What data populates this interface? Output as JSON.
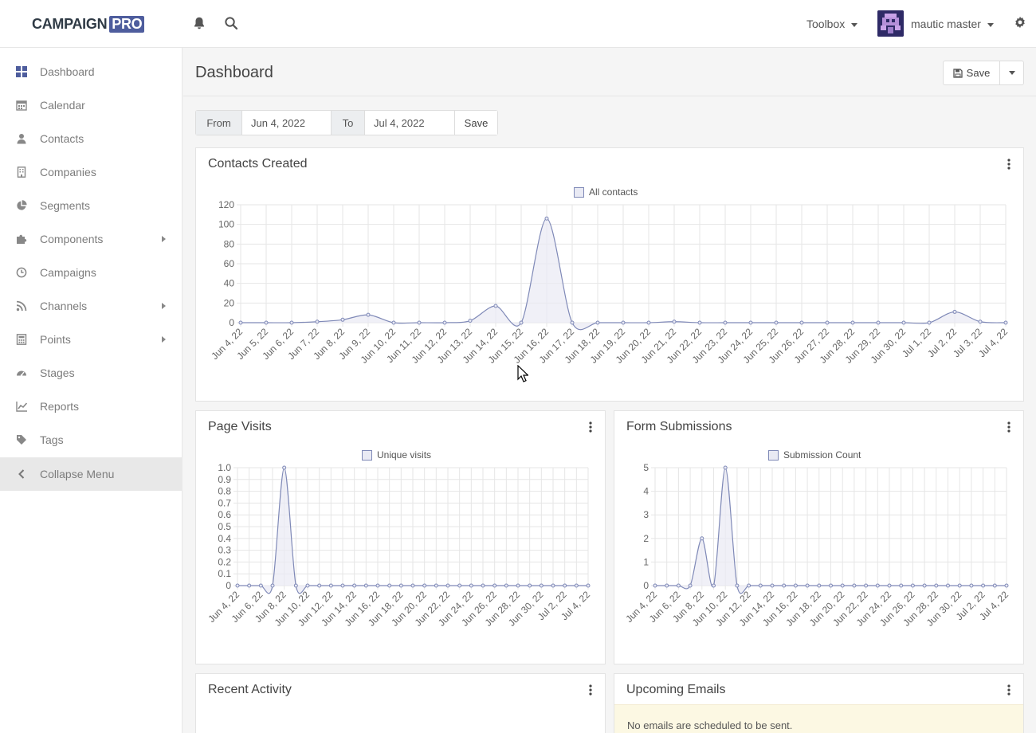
{
  "brand": {
    "name": "CAMPAIGN",
    "badge": "PRO"
  },
  "topbar": {
    "toolbox_label": "Toolbox",
    "user_name": "mautic master"
  },
  "sidebar": {
    "items": [
      {
        "label": "Dashboard",
        "icon": "dashboard-icon",
        "submenu": false
      },
      {
        "label": "Calendar",
        "icon": "calendar-icon",
        "submenu": false
      },
      {
        "label": "Contacts",
        "icon": "user-icon",
        "submenu": false
      },
      {
        "label": "Companies",
        "icon": "building-icon",
        "submenu": false
      },
      {
        "label": "Segments",
        "icon": "pie-chart-icon",
        "submenu": false
      },
      {
        "label": "Components",
        "icon": "puzzle-icon",
        "submenu": true
      },
      {
        "label": "Campaigns",
        "icon": "clock-icon",
        "submenu": false
      },
      {
        "label": "Channels",
        "icon": "rss-icon",
        "submenu": true
      },
      {
        "label": "Points",
        "icon": "calculator-icon",
        "submenu": true
      },
      {
        "label": "Stages",
        "icon": "tachometer-icon",
        "submenu": false
      },
      {
        "label": "Reports",
        "icon": "line-chart-icon",
        "submenu": false
      },
      {
        "label": "Tags",
        "icon": "tag-icon",
        "submenu": false
      }
    ],
    "collapse_label": "Collapse Menu"
  },
  "page": {
    "title": "Dashboard",
    "save_label": "Save"
  },
  "date_filter": {
    "from_label": "From",
    "from_value": "Jun 4, 2022",
    "to_label": "To",
    "to_value": "Jul 4, 2022",
    "save_label": "Save"
  },
  "widgets": {
    "contacts_created": {
      "title": "Contacts Created"
    },
    "page_visits": {
      "title": "Page Visits"
    },
    "form_submissions": {
      "title": "Form Submissions"
    },
    "recent_activity": {
      "title": "Recent Activity"
    },
    "upcoming_emails": {
      "title": "Upcoming Emails",
      "notice": "No emails are scheduled to be sent."
    }
  },
  "colors": {
    "line": "#7f89b7",
    "fill": "#e9eaf4",
    "grid": "#e6e6e6",
    "accent": "#4e5d9d"
  },
  "chart_data": [
    {
      "type": "area",
      "legend": "All contacts",
      "ylim": [
        0,
        120
      ],
      "yticks": [
        0,
        20,
        40,
        60,
        80,
        100,
        120
      ],
      "categories": [
        "Jun 4, 22",
        "Jun 5, 22",
        "Jun 6, 22",
        "Jun 7, 22",
        "Jun 8, 22",
        "Jun 9, 22",
        "Jun 10, 22",
        "Jun 11, 22",
        "Jun 12, 22",
        "Jun 13, 22",
        "Jun 14, 22",
        "Jun 15, 22",
        "Jun 16, 22",
        "Jun 17, 22",
        "Jun 18, 22",
        "Jun 19, 22",
        "Jun 20, 22",
        "Jun 21, 22",
        "Jun 22, 22",
        "Jun 23, 22",
        "Jun 24, 22",
        "Jun 25, 22",
        "Jun 26, 22",
        "Jun 27, 22",
        "Jun 28, 22",
        "Jun 29, 22",
        "Jun 30, 22",
        "Jul 1, 22",
        "Jul 2, 22",
        "Jul 3, 22",
        "Jul 4, 22"
      ],
      "values": [
        0,
        0,
        0,
        1,
        3,
        8,
        0,
        0,
        0,
        2,
        17,
        0,
        106,
        0,
        0,
        0,
        0,
        1,
        0,
        0,
        0,
        0,
        0,
        0,
        0,
        0,
        0,
        0,
        11,
        1,
        0
      ],
      "grid": true,
      "legend_position": "top"
    },
    {
      "type": "area",
      "legend": "Unique visits",
      "ylim": [
        0,
        1
      ],
      "yticks": [
        0,
        0.1,
        0.2,
        0.3,
        0.4,
        0.5,
        0.6,
        0.7,
        0.8,
        0.9,
        1.0
      ],
      "categories": [
        "Jun 4, 22",
        "Jun 5, 22",
        "Jun 6, 22",
        "Jun 7, 22",
        "Jun 8, 22",
        "Jun 9, 22",
        "Jun 10, 22",
        "Jun 11, 22",
        "Jun 12, 22",
        "Jun 13, 22",
        "Jun 14, 22",
        "Jun 15, 22",
        "Jun 16, 22",
        "Jun 17, 22",
        "Jun 18, 22",
        "Jun 19, 22",
        "Jun 20, 22",
        "Jun 21, 22",
        "Jun 22, 22",
        "Jun 23, 22",
        "Jun 24, 22",
        "Jun 25, 22",
        "Jun 26, 22",
        "Jun 27, 22",
        "Jun 28, 22",
        "Jun 29, 22",
        "Jun 30, 22",
        "Jul 1, 22",
        "Jul 2, 22",
        "Jul 3, 22",
        "Jul 4, 22"
      ],
      "tick_labels": [
        "Jun 4, 22",
        "Jun 6, 22",
        "Jun 8, 22",
        "Jun 10, 22",
        "Jun 12, 22",
        "Jun 14, 22",
        "Jun 16, 22",
        "Jun 18, 22",
        "Jun 20, 22",
        "Jun 22, 22",
        "Jun 24, 22",
        "Jun 26, 22",
        "Jun 28, 22",
        "Jun 30, 22",
        "Jul 2, 22",
        "Jul 4, 22"
      ],
      "values": [
        0,
        0,
        0,
        0,
        1,
        0,
        0,
        0,
        0,
        0,
        0,
        0,
        0,
        0,
        0,
        0,
        0,
        0,
        0,
        0,
        0,
        0,
        0,
        0,
        0,
        0,
        0,
        0,
        0,
        0,
        0
      ],
      "grid": true,
      "legend_position": "top"
    },
    {
      "type": "area",
      "legend": "Submission Count",
      "ylim": [
        0,
        5
      ],
      "yticks": [
        0,
        1,
        2,
        3,
        4,
        5
      ],
      "categories": [
        "Jun 4, 22",
        "Jun 5, 22",
        "Jun 6, 22",
        "Jun 7, 22",
        "Jun 8, 22",
        "Jun 9, 22",
        "Jun 10, 22",
        "Jun 11, 22",
        "Jun 12, 22",
        "Jun 13, 22",
        "Jun 14, 22",
        "Jun 15, 22",
        "Jun 16, 22",
        "Jun 17, 22",
        "Jun 18, 22",
        "Jun 19, 22",
        "Jun 20, 22",
        "Jun 21, 22",
        "Jun 22, 22",
        "Jun 23, 22",
        "Jun 24, 22",
        "Jun 25, 22",
        "Jun 26, 22",
        "Jun 27, 22",
        "Jun 28, 22",
        "Jun 29, 22",
        "Jun 30, 22",
        "Jul 1, 22",
        "Jul 2, 22",
        "Jul 3, 22",
        "Jul 4, 22"
      ],
      "tick_labels": [
        "Jun 4, 22",
        "Jun 6, 22",
        "Jun 8, 22",
        "Jun 10, 22",
        "Jun 12, 22",
        "Jun 14, 22",
        "Jun 16, 22",
        "Jun 18, 22",
        "Jun 20, 22",
        "Jun 22, 22",
        "Jun 24, 22",
        "Jun 26, 22",
        "Jun 28, 22",
        "Jun 30, 22",
        "Jul 2, 22",
        "Jul 4, 22"
      ],
      "values": [
        0,
        0,
        0,
        0,
        2,
        0,
        5,
        0,
        0,
        0,
        0,
        0,
        0,
        0,
        0,
        0,
        0,
        0,
        0,
        0,
        0,
        0,
        0,
        0,
        0,
        0,
        0,
        0,
        0,
        0,
        0
      ],
      "grid": true,
      "legend_position": "top"
    }
  ]
}
